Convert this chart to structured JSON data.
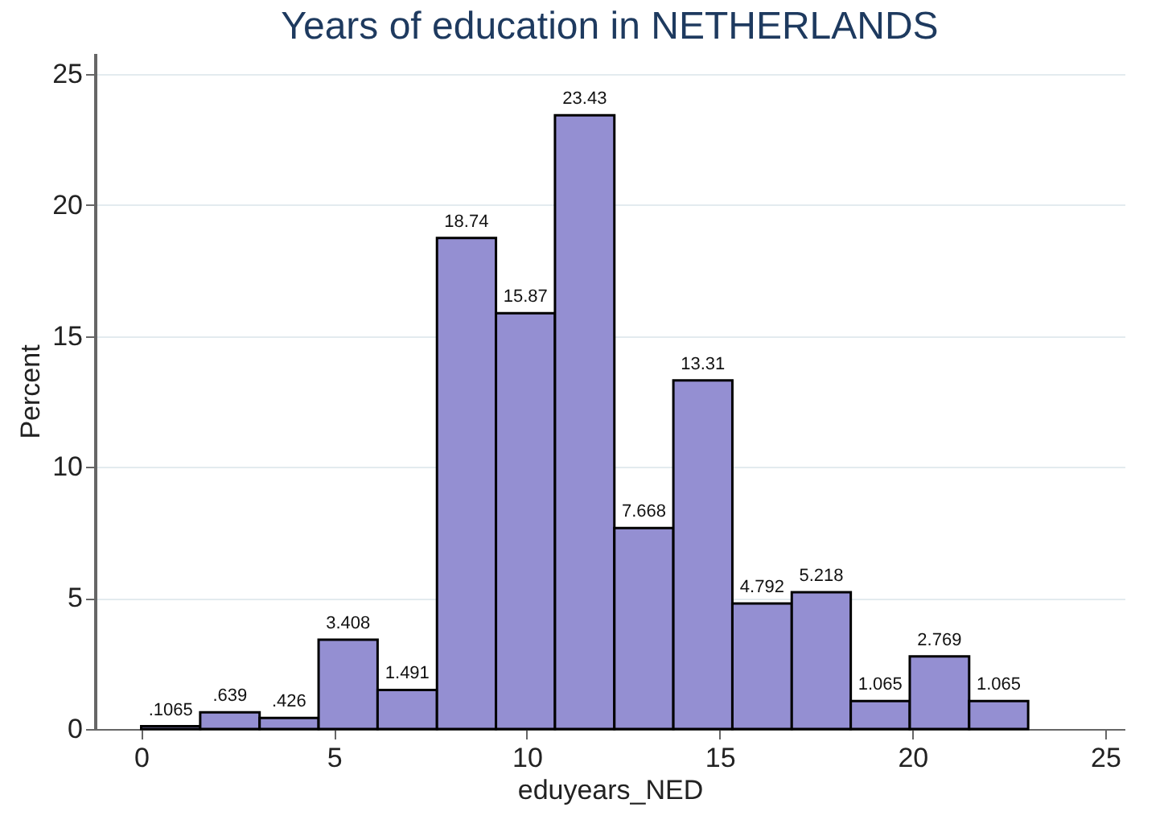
{
  "chart_data": {
    "type": "histogram",
    "title": "Years of education in NETHERLANDS",
    "xlabel": "eduyears_NED",
    "ylabel": "Percent",
    "bins": [
      0,
      1.53,
      3.07,
      4.6,
      6.13,
      7.67,
      9.2,
      10.73,
      12.27,
      13.8,
      15.33,
      16.87,
      18.4,
      19.93,
      21.47,
      23
    ],
    "values": [
      0.1065,
      0.639,
      0.426,
      3.408,
      1.491,
      18.74,
      15.87,
      23.43,
      7.668,
      13.31,
      4.792,
      5.218,
      1.065,
      2.769,
      1.065
    ],
    "value_labels": [
      ".1065",
      ".639",
      ".426",
      "3.408",
      "1.491",
      "18.74",
      "15.87",
      "23.43",
      "7.668",
      "13.31",
      "4.792",
      "5.218",
      "1.065",
      "2.769",
      "1.065"
    ],
    "color": "#948fd2",
    "grid": "y",
    "xlim": [
      -1.2,
      25.5
    ],
    "xticks": [
      0,
      5,
      10,
      15,
      20,
      25
    ],
    "ylim": [
      0,
      25.8
    ],
    "yticks": [
      0,
      5,
      10,
      15,
      20,
      25
    ]
  }
}
